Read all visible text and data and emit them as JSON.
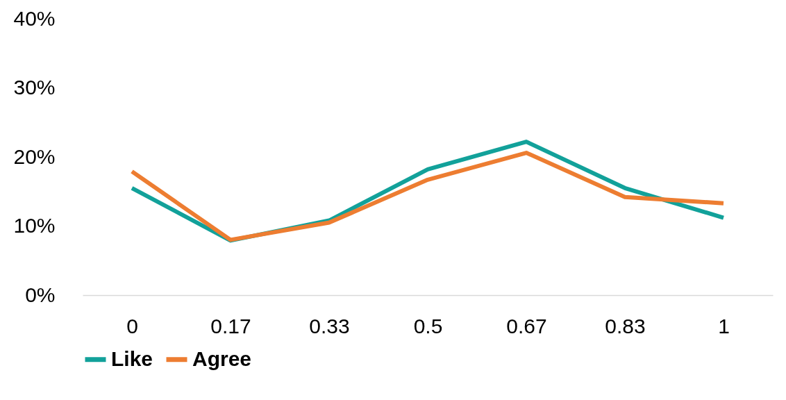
{
  "chart_data": {
    "type": "line",
    "categories": [
      "0",
      "0.17",
      "0.33",
      "0.5",
      "0.67",
      "0.83",
      "1"
    ],
    "series": [
      {
        "name": "Like",
        "color": "#12a19a",
        "values": [
          15.5,
          7.9,
          10.8,
          18.2,
          22.2,
          15.5,
          11.2
        ]
      },
      {
        "name": "Agree",
        "color": "#ed7d31",
        "values": [
          17.9,
          8.0,
          10.5,
          16.7,
          20.6,
          14.2,
          13.3
        ]
      }
    ],
    "ylim": [
      0,
      40
    ],
    "yticks": [
      {
        "value": 0,
        "label": "0%"
      },
      {
        "value": 10,
        "label": "10%"
      },
      {
        "value": 20,
        "label": "20%"
      },
      {
        "value": 30,
        "label": "30%"
      },
      {
        "value": 40,
        "label": "40%"
      }
    ],
    "grid": false,
    "legend": "bottom",
    "line_style": "solid"
  }
}
